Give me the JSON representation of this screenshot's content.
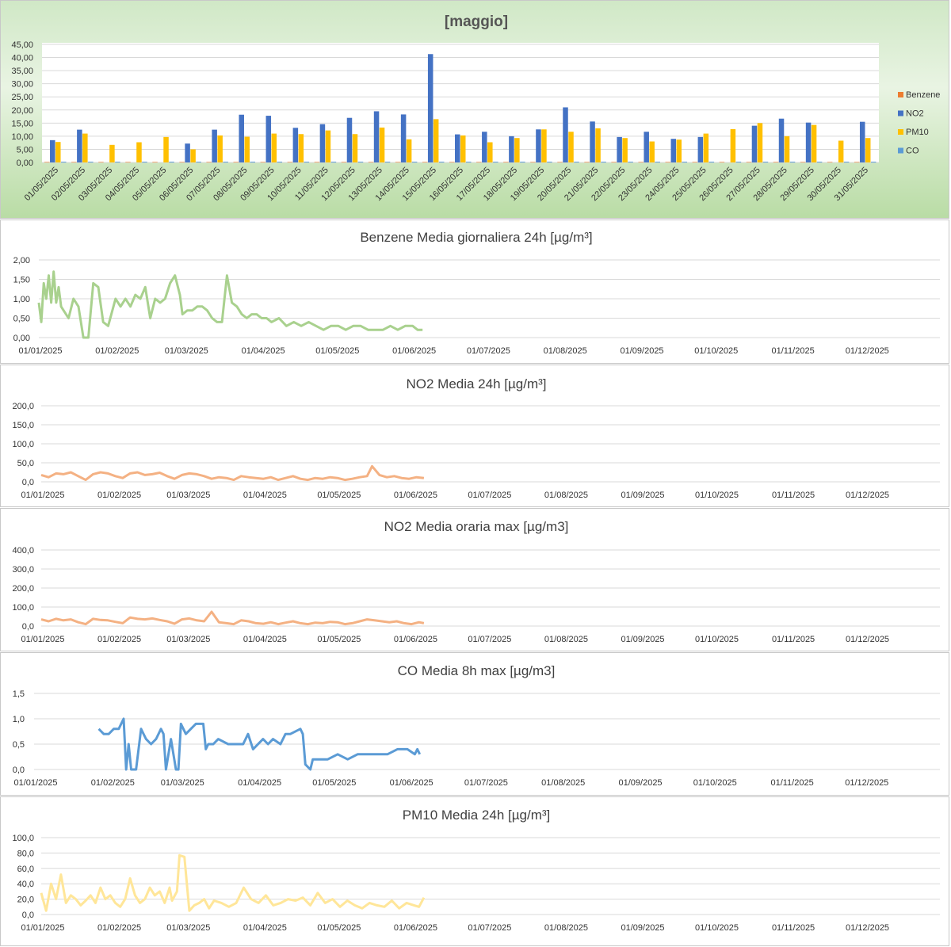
{
  "chart_data": [
    {
      "type": "bar",
      "title": "[maggio]",
      "categories": [
        "01/05/2025",
        "02/05/2025",
        "03/05/2025",
        "04/05/2025",
        "05/05/2025",
        "06/05/2025",
        "07/05/2025",
        "08/05/2025",
        "09/05/2025",
        "10/05/2025",
        "11/05/2025",
        "12/05/2025",
        "13/05/2025",
        "14/05/2025",
        "15/05/2025",
        "16/05/2025",
        "17/05/2025",
        "18/05/2025",
        "19/05/2025",
        "20/05/2025",
        "21/05/2025",
        "22/05/2025",
        "23/05/2025",
        "24/05/2025",
        "25/05/2025",
        "26/05/2025",
        "27/05/2025",
        "28/05/2025",
        "29/05/2025",
        "30/05/2025",
        "31/05/2025"
      ],
      "yticks": [
        "0,00",
        "5,00",
        "10,00",
        "15,00",
        "20,00",
        "25,00",
        "30,00",
        "35,00",
        "40,00",
        "45,00"
      ],
      "ylim": [
        0,
        45
      ],
      "legend_position": "right",
      "series": [
        {
          "name": "Benzene",
          "color": "#ED7D31",
          "values": [
            0.2,
            0.2,
            0.2,
            0.2,
            0.2,
            0.2,
            0.2,
            0.2,
            0.2,
            0.2,
            0.2,
            0.2,
            0.2,
            0.2,
            0.2,
            0.2,
            0.2,
            0.2,
            0.2,
            0.2,
            0.2,
            0.2,
            0.2,
            0.2,
            0.2,
            0.2,
            0.2,
            0.2,
            0.2,
            0.2,
            0.2
          ]
        },
        {
          "name": "NO2",
          "color": "#4472C4",
          "values": [
            8.5,
            12.5,
            0,
            0,
            0,
            7.2,
            12.5,
            18.2,
            17.8,
            13.2,
            14.6,
            17.0,
            19.5,
            18.3,
            41.3,
            10.7,
            11.7,
            10.0,
            12.6,
            21.0,
            15.6,
            9.7,
            11.7,
            9.0,
            9.7,
            0,
            14.0,
            16.7,
            15.2,
            0,
            15.5
          ]
        },
        {
          "name": "PM10",
          "color": "#FFC000",
          "values": [
            7.8,
            11.0,
            6.7,
            7.7,
            9.7,
            5.0,
            10.3,
            9.8,
            11.0,
            10.8,
            12.2,
            10.8,
            13.3,
            8.8,
            16.5,
            10.3,
            7.7,
            9.3,
            12.6,
            11.7,
            13.0,
            9.3,
            8.0,
            8.7,
            11.0,
            12.7,
            15.0,
            10.0,
            14.3,
            8.3,
            9.3
          ]
        },
        {
          "name": "CO",
          "color": "#5B9BD5",
          "values": [
            0.3,
            0.3,
            0.3,
            0.3,
            0.3,
            0.3,
            0.3,
            0.3,
            0.3,
            0.3,
            0.3,
            0.3,
            0.3,
            0.3,
            0.3,
            0.3,
            0.3,
            0.3,
            0.3,
            0.3,
            0.3,
            0.3,
            0.3,
            0.3,
            0.3,
            0.3,
            0.3,
            0.3,
            0.3,
            0.3,
            0.3
          ]
        }
      ]
    },
    {
      "type": "line",
      "title": "Benzene  Media giornaliera 24h [µg/m³]",
      "color": "#A9D18E",
      "yticks": [
        "0,00",
        "0,50",
        "1,00",
        "1,50",
        "2,00"
      ],
      "ylim": [
        0,
        2
      ],
      "xticks": [
        "01/01/2025",
        "01/02/2025",
        "01/03/2025",
        "01/04/2025",
        "01/05/2025",
        "01/06/2025",
        "01/07/2025",
        "01/08/2025",
        "01/09/2025",
        "01/10/2025",
        "01/11/2025",
        "01/12/2025"
      ],
      "xlim": [
        "2025-01-01",
        "2025-12-31"
      ],
      "x": [
        "2025-01-01",
        "2025-01-02",
        "2025-01-03",
        "2025-01-04",
        "2025-01-05",
        "2025-01-06",
        "2025-01-07",
        "2025-01-08",
        "2025-01-09",
        "2025-01-10",
        "2025-01-11",
        "2025-01-13",
        "2025-01-15",
        "2025-01-17",
        "2025-01-19",
        "2025-01-21",
        "2025-01-23",
        "2025-01-25",
        "2025-01-27",
        "2025-01-29",
        "2025-02-01",
        "2025-02-03",
        "2025-02-05",
        "2025-02-07",
        "2025-02-09",
        "2025-02-11",
        "2025-02-13",
        "2025-02-15",
        "2025-02-17",
        "2025-02-19",
        "2025-02-21",
        "2025-02-23",
        "2025-02-25",
        "2025-02-27",
        "2025-02-28",
        "2025-03-02",
        "2025-03-04",
        "2025-03-06",
        "2025-03-08",
        "2025-03-10",
        "2025-03-12",
        "2025-03-14",
        "2025-03-16",
        "2025-03-18",
        "2025-03-20",
        "2025-03-22",
        "2025-03-24",
        "2025-03-26",
        "2025-03-28",
        "2025-03-30",
        "2025-04-01",
        "2025-04-03",
        "2025-04-05",
        "2025-04-08",
        "2025-04-11",
        "2025-04-14",
        "2025-04-17",
        "2025-04-20",
        "2025-04-23",
        "2025-04-26",
        "2025-04-29",
        "2025-05-02",
        "2025-05-05",
        "2025-05-08",
        "2025-05-11",
        "2025-05-14",
        "2025-05-17",
        "2025-05-20",
        "2025-05-23",
        "2025-05-26",
        "2025-05-29",
        "2025-06-01",
        "2025-06-03",
        "2025-06-05"
      ],
      "y": [
        0.9,
        0.4,
        1.4,
        1.0,
        1.6,
        0.9,
        1.7,
        0.9,
        1.3,
        0.8,
        0.7,
        0.5,
        1.0,
        0.8,
        0.0,
        0.0,
        1.4,
        1.3,
        0.4,
        0.3,
        1.0,
        0.8,
        1.0,
        0.8,
        1.1,
        1.0,
        1.3,
        0.5,
        1.0,
        0.9,
        1.0,
        1.4,
        1.6,
        1.1,
        0.6,
        0.7,
        0.7,
        0.8,
        0.8,
        0.7,
        0.5,
        0.4,
        0.4,
        1.6,
        0.9,
        0.8,
        0.6,
        0.5,
        0.6,
        0.6,
        0.5,
        0.5,
        0.4,
        0.5,
        0.3,
        0.4,
        0.3,
        0.4,
        0.3,
        0.2,
        0.3,
        0.3,
        0.2,
        0.3,
        0.3,
        0.2,
        0.2,
        0.2,
        0.3,
        0.2,
        0.3,
        0.3,
        0.2,
        0.2
      ]
    },
    {
      "type": "line",
      "title": "NO2 Media 24h [µg/m³]",
      "color": "#F4B183",
      "yticks": [
        "0,0",
        "50,0",
        "100,0",
        "150,0",
        "200,0"
      ],
      "ylim": [
        0,
        200
      ],
      "xticks": [
        "01/01/2025",
        "01/02/2025",
        "01/03/2025",
        "01/04/2025",
        "01/05/2025",
        "01/06/2025",
        "01/07/2025",
        "01/08/2025",
        "01/09/2025",
        "01/10/2025",
        "01/11/2025",
        "01/12/2025"
      ],
      "xlim": [
        "2025-01-01",
        "2025-12-31"
      ],
      "x": [
        "2025-01-01",
        "2025-01-04",
        "2025-01-07",
        "2025-01-10",
        "2025-01-13",
        "2025-01-16",
        "2025-01-19",
        "2025-01-22",
        "2025-01-25",
        "2025-01-28",
        "2025-01-31",
        "2025-02-03",
        "2025-02-06",
        "2025-02-09",
        "2025-02-12",
        "2025-02-15",
        "2025-02-18",
        "2025-02-21",
        "2025-02-24",
        "2025-02-27",
        "2025-03-02",
        "2025-03-05",
        "2025-03-08",
        "2025-03-11",
        "2025-03-14",
        "2025-03-17",
        "2025-03-20",
        "2025-03-23",
        "2025-03-26",
        "2025-03-29",
        "2025-04-01",
        "2025-04-04",
        "2025-04-07",
        "2025-04-10",
        "2025-04-13",
        "2025-04-16",
        "2025-04-19",
        "2025-04-22",
        "2025-04-25",
        "2025-04-28",
        "2025-05-01",
        "2025-05-04",
        "2025-05-07",
        "2025-05-10",
        "2025-05-13",
        "2025-05-15",
        "2025-05-18",
        "2025-05-21",
        "2025-05-24",
        "2025-05-27",
        "2025-05-30",
        "2025-06-02",
        "2025-06-05"
      ],
      "y": [
        18,
        12,
        22,
        20,
        25,
        15,
        5,
        20,
        25,
        22,
        15,
        10,
        22,
        25,
        18,
        20,
        24,
        15,
        8,
        18,
        22,
        20,
        15,
        8,
        12,
        10,
        5,
        15,
        12,
        10,
        8,
        12,
        5,
        10,
        15,
        8,
        5,
        10,
        8,
        12,
        10,
        5,
        8,
        12,
        15,
        41,
        18,
        12,
        15,
        10,
        8,
        12,
        10
      ]
    },
    {
      "type": "line",
      "title": "NO2 Media oraria max [µg/m3]",
      "color": "#F4B183",
      "yticks": [
        "0,0",
        "100,0",
        "200,0",
        "300,0",
        "400,0"
      ],
      "ylim": [
        0,
        400
      ],
      "xticks": [
        "01/01/2025",
        "01/02/2025",
        "01/03/2025",
        "01/04/2025",
        "01/05/2025",
        "01/06/2025",
        "01/07/2025",
        "01/08/2025",
        "01/09/2025",
        "01/10/2025",
        "01/11/2025",
        "01/12/2025"
      ],
      "xlim": [
        "2025-01-01",
        "2025-12-31"
      ],
      "x": [
        "2025-01-01",
        "2025-01-04",
        "2025-01-07",
        "2025-01-10",
        "2025-01-13",
        "2025-01-16",
        "2025-01-19",
        "2025-01-22",
        "2025-01-25",
        "2025-01-28",
        "2025-01-31",
        "2025-02-03",
        "2025-02-06",
        "2025-02-09",
        "2025-02-12",
        "2025-02-15",
        "2025-02-18",
        "2025-02-21",
        "2025-02-24",
        "2025-02-27",
        "2025-03-02",
        "2025-03-05",
        "2025-03-08",
        "2025-03-11",
        "2025-03-14",
        "2025-03-17",
        "2025-03-20",
        "2025-03-23",
        "2025-03-26",
        "2025-03-29",
        "2025-04-01",
        "2025-04-04",
        "2025-04-07",
        "2025-04-10",
        "2025-04-13",
        "2025-04-16",
        "2025-04-19",
        "2025-04-22",
        "2025-04-25",
        "2025-04-28",
        "2025-05-01",
        "2025-05-04",
        "2025-05-07",
        "2025-05-10",
        "2025-05-13",
        "2025-05-16",
        "2025-05-19",
        "2025-05-22",
        "2025-05-25",
        "2025-05-28",
        "2025-05-31",
        "2025-06-03",
        "2025-06-05"
      ],
      "y": [
        35,
        25,
        38,
        30,
        35,
        20,
        10,
        38,
        32,
        30,
        22,
        15,
        45,
        38,
        35,
        40,
        32,
        25,
        12,
        35,
        40,
        30,
        25,
        75,
        20,
        15,
        10,
        30,
        25,
        15,
        12,
        20,
        10,
        18,
        25,
        15,
        10,
        18,
        15,
        22,
        20,
        10,
        15,
        25,
        35,
        30,
        25,
        20,
        25,
        15,
        10,
        20,
        15
      ]
    },
    {
      "type": "line",
      "title": "CO Media 8h max [µg/m3]",
      "color": "#5B9BD5",
      "yticks": [
        "0,0",
        "0,5",
        "1,0",
        "1,5"
      ],
      "ylim": [
        0,
        1.5
      ],
      "xticks": [
        "01/01/2025",
        "01/02/2025",
        "01/03/2025",
        "01/04/2025",
        "01/05/2025",
        "01/06/2025",
        "01/07/2025",
        "01/08/2025",
        "01/09/2025",
        "01/10/2025",
        "01/11/2025",
        "01/12/2025"
      ],
      "xlim": [
        "2025-01-01",
        "2025-12-31"
      ],
      "x": [
        "2025-01-27",
        "2025-01-29",
        "2025-01-31",
        "2025-02-02",
        "2025-02-04",
        "2025-02-06",
        "2025-02-07",
        "2025-02-08",
        "2025-02-09",
        "2025-02-11",
        "2025-02-13",
        "2025-02-15",
        "2025-02-17",
        "2025-02-19",
        "2025-02-21",
        "2025-02-22",
        "2025-02-23",
        "2025-02-25",
        "2025-02-27",
        "2025-02-28",
        "2025-03-01",
        "2025-03-03",
        "2025-03-05",
        "2025-03-07",
        "2025-03-10",
        "2025-03-11",
        "2025-03-12",
        "2025-03-14",
        "2025-03-16",
        "2025-03-20",
        "2025-03-22",
        "2025-03-24",
        "2025-03-26",
        "2025-03-28",
        "2025-03-30",
        "2025-04-03",
        "2025-04-05",
        "2025-04-07",
        "2025-04-10",
        "2025-04-12",
        "2025-04-14",
        "2025-04-18",
        "2025-04-19",
        "2025-04-20",
        "2025-04-22",
        "2025-04-23",
        "2025-04-25",
        "2025-04-29",
        "2025-05-03",
        "2025-05-07",
        "2025-05-11",
        "2025-05-15",
        "2025-05-19",
        "2025-05-23",
        "2025-05-27",
        "2025-05-31",
        "2025-06-03",
        "2025-06-04",
        "2025-06-05"
      ],
      "y": [
        0.8,
        0.7,
        0.7,
        0.8,
        0.8,
        1.0,
        0.0,
        0.5,
        0.0,
        0.0,
        0.8,
        0.6,
        0.5,
        0.6,
        0.8,
        0.7,
        0.0,
        0.6,
        0.0,
        0.0,
        0.9,
        0.7,
        0.8,
        0.9,
        0.9,
        0.4,
        0.5,
        0.5,
        0.6,
        0.5,
        0.5,
        0.5,
        0.5,
        0.7,
        0.4,
        0.6,
        0.5,
        0.6,
        0.5,
        0.7,
        0.7,
        0.8,
        0.7,
        0.1,
        0.0,
        0.2,
        0.2,
        0.2,
        0.3,
        0.2,
        0.3,
        0.3,
        0.3,
        0.3,
        0.4,
        0.4,
        0.3,
        0.4,
        0.3
      ]
    },
    {
      "type": "line",
      "title": "PM10 Media 24h [µg/m³]",
      "color": "#FFE699",
      "yticks": [
        "0,0",
        "20,0",
        "40,0",
        "60,0",
        "80,0",
        "100,0"
      ],
      "ylim": [
        0,
        100
      ],
      "xticks": [
        "01/01/2025",
        "01/02/2025",
        "01/03/2025",
        "01/04/2025",
        "01/05/2025",
        "01/06/2025",
        "01/07/2025",
        "01/08/2025",
        "01/09/2025",
        "01/10/2025",
        "01/11/2025",
        "01/12/2025"
      ],
      "xlim": [
        "2025-01-01",
        "2025-12-31"
      ],
      "x": [
        "2025-01-01",
        "2025-01-03",
        "2025-01-05",
        "2025-01-07",
        "2025-01-09",
        "2025-01-11",
        "2025-01-13",
        "2025-01-15",
        "2025-01-17",
        "2025-01-19",
        "2025-01-21",
        "2025-01-23",
        "2025-01-25",
        "2025-01-27",
        "2025-01-29",
        "2025-01-31",
        "2025-02-02",
        "2025-02-04",
        "2025-02-06",
        "2025-02-08",
        "2025-02-10",
        "2025-02-12",
        "2025-02-14",
        "2025-02-16",
        "2025-02-18",
        "2025-02-20",
        "2025-02-22",
        "2025-02-23",
        "2025-02-25",
        "2025-02-26",
        "2025-02-28",
        "2025-03-02",
        "2025-03-04",
        "2025-03-06",
        "2025-03-08",
        "2025-03-10",
        "2025-03-12",
        "2025-03-15",
        "2025-03-18",
        "2025-03-21",
        "2025-03-24",
        "2025-03-27",
        "2025-03-30",
        "2025-04-02",
        "2025-04-05",
        "2025-04-08",
        "2025-04-11",
        "2025-04-14",
        "2025-04-17",
        "2025-04-20",
        "2025-04-23",
        "2025-04-26",
        "2025-04-29",
        "2025-05-02",
        "2025-05-05",
        "2025-05-08",
        "2025-05-11",
        "2025-05-14",
        "2025-05-17",
        "2025-05-20",
        "2025-05-23",
        "2025-05-26",
        "2025-05-29",
        "2025-06-01",
        "2025-06-03",
        "2025-06-05"
      ],
      "y": [
        28,
        5,
        40,
        20,
        52,
        15,
        25,
        20,
        12,
        18,
        25,
        15,
        35,
        20,
        25,
        15,
        10,
        20,
        47,
        25,
        15,
        20,
        35,
        25,
        30,
        15,
        35,
        18,
        30,
        77,
        75,
        5,
        12,
        15,
        20,
        8,
        18,
        15,
        10,
        15,
        35,
        20,
        15,
        25,
        12,
        15,
        20,
        18,
        22,
        12,
        28,
        15,
        20,
        10,
        18,
        12,
        8,
        15,
        12,
        10,
        18,
        8,
        15,
        12,
        10,
        22
      ]
    }
  ]
}
